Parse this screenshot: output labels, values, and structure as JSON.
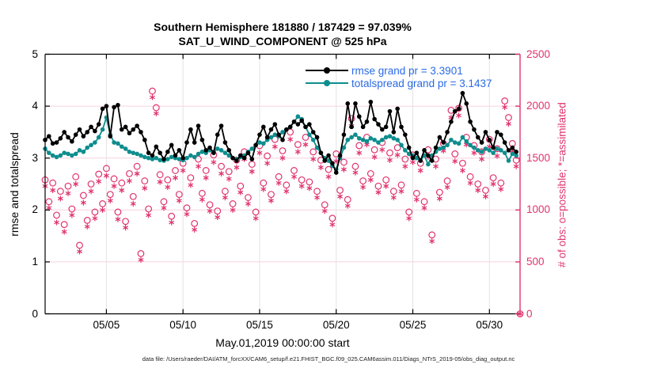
{
  "figure": {
    "title_line1": "Southern Hemisphere 181880 / 187429 = 97.039%",
    "title_line2": "SAT_U_WIND_COMPONENT @ 525 hPa",
    "xlabel": "May.01,2019 00:00:00 start",
    "ylabel_left": "rmse and totalspread",
    "ylabel_right": "# of obs: o=possible; *=assimilated",
    "footer": "data file: /Users/raeder/DAI/ATM_forcXX/CAM6_setup/f.e21.FHIST_BGC.f09_025.CAM6assim.011/Diags_NTrS_2019-05/obs_diag_output.nc"
  },
  "legend": {
    "rmse_label": "rmse grand pr = 3.3901",
    "totalspread_label": "totalspread grand pr = 3.1437"
  },
  "colors": {
    "rmse": "#000000",
    "totalspread": "#0e8d8d",
    "obs": "#e0336e",
    "legend_text": "#2a6ae6",
    "grid_h": "#f6d2e0",
    "grid_v": "#e3e3e3"
  },
  "chart_data": {
    "type": "line",
    "title": "Southern Hemisphere 181880 / 187429 = 97.039% | SAT_U_WIND_COMPONENT @ 525 hPa",
    "x_axis": {
      "label": "May.01,2019 00:00:00 start",
      "start_day": 1,
      "step_days": 0.25,
      "range_days": [
        1,
        32
      ],
      "ticks": [
        {
          "day": 5,
          "label": "05/05"
        },
        {
          "day": 10,
          "label": "05/10"
        },
        {
          "day": 15,
          "label": "05/15"
        },
        {
          "day": 20,
          "label": "05/20"
        },
        {
          "day": 25,
          "label": "05/25"
        },
        {
          "day": 30,
          "label": "05/30"
        }
      ]
    },
    "y_axis_left": {
      "label": "rmse and totalspread",
      "lim": [
        0,
        5
      ],
      "ticks": [
        0,
        1,
        2,
        3,
        4,
        5
      ]
    },
    "y_axis_right": {
      "label": "# of obs: o=possible; *=assimilated",
      "lim": [
        0,
        2500
      ],
      "ticks": [
        0,
        500,
        1000,
        1500,
        2000,
        2500
      ]
    },
    "series": [
      {
        "name": "rmse",
        "grand_pr": 3.3901,
        "axis": "left",
        "marker": "dot",
        "values": [
          3.35,
          3.42,
          3.28,
          3.3,
          3.38,
          3.5,
          3.4,
          3.32,
          3.45,
          3.55,
          3.42,
          3.5,
          3.6,
          3.52,
          3.65,
          3.95,
          4.0,
          3.42,
          3.98,
          4.02,
          3.55,
          3.6,
          3.48,
          3.55,
          3.62,
          3.5,
          3.35,
          3.1,
          3.05,
          3.22,
          3.1,
          2.98,
          3.12,
          3.25,
          3.05,
          3.15,
          3.0,
          3.3,
          3.55,
          3.3,
          3.62,
          3.35,
          3.15,
          3.2,
          3.1,
          3.45,
          3.62,
          3.3,
          3.15,
          3.0,
          2.95,
          3.05,
          3.0,
          3.1,
          2.98,
          3.25,
          3.45,
          3.6,
          3.4,
          3.55,
          3.65,
          3.45,
          3.35,
          3.55,
          3.6,
          3.7,
          3.65,
          3.72,
          3.6,
          3.65,
          3.5,
          3.4,
          3.1,
          2.95,
          3.05,
          2.9,
          2.72,
          3.05,
          3.45,
          4.05,
          3.6,
          4.05,
          3.8,
          3.6,
          3.7,
          4.08,
          3.75,
          3.65,
          3.55,
          3.6,
          3.9,
          3.5,
          3.95,
          3.6,
          3.45,
          3.2,
          3.0,
          3.1,
          2.95,
          3.15,
          3.05,
          2.95,
          3.2,
          3.4,
          3.3,
          3.5,
          3.7,
          3.9,
          3.95,
          4.25,
          4.05,
          3.7,
          3.55,
          3.4,
          3.3,
          3.5,
          3.35,
          3.2,
          3.5,
          3.45,
          3.3,
          3.15,
          3.2,
          3.12
        ]
      },
      {
        "name": "totalspread",
        "grand_pr": 3.1437,
        "axis": "left",
        "marker": "dot",
        "values": [
          3.18,
          3.1,
          3.05,
          3.02,
          3.05,
          3.1,
          3.08,
          3.05,
          3.08,
          3.15,
          3.12,
          3.2,
          3.25,
          3.3,
          3.4,
          3.55,
          3.78,
          3.45,
          3.3,
          3.28,
          3.22,
          3.18,
          3.12,
          3.1,
          3.08,
          3.05,
          3.02,
          3.0,
          2.98,
          3.0,
          2.96,
          2.95,
          2.98,
          3.02,
          3.0,
          2.98,
          2.96,
          3.0,
          3.05,
          3.02,
          3.08,
          3.12,
          3.1,
          3.15,
          3.12,
          3.18,
          3.15,
          3.1,
          3.05,
          3.0,
          2.98,
          3.02,
          3.05,
          3.12,
          3.18,
          3.25,
          3.3,
          3.28,
          3.35,
          3.4,
          3.45,
          3.42,
          3.5,
          3.55,
          3.6,
          3.7,
          3.8,
          3.75,
          3.6,
          3.45,
          3.35,
          3.2,
          3.1,
          3.0,
          2.95,
          2.85,
          2.78,
          3.0,
          3.2,
          3.35,
          3.4,
          3.45,
          3.38,
          3.35,
          3.32,
          3.38,
          3.35,
          3.3,
          3.35,
          3.4,
          3.42,
          3.38,
          3.35,
          3.25,
          3.15,
          3.08,
          3.05,
          3.0,
          2.95,
          3.05,
          2.88,
          3.05,
          3.12,
          3.18,
          3.2,
          3.25,
          3.35,
          3.3,
          3.28,
          3.4,
          3.32,
          3.25,
          3.2,
          3.15,
          3.12,
          3.18,
          3.15,
          3.1,
          3.18,
          3.15,
          3.1,
          2.95,
          3.08,
          3.05
        ]
      },
      {
        "name": "obs_possible",
        "axis": "right",
        "marker": "circle",
        "values": [
          1290,
          1080,
          1260,
          950,
          1180,
          860,
          1230,
          1010,
          1320,
          660,
          1140,
          900,
          1250,
          980,
          1345,
          1060,
          1400,
          1150,
          1300,
          980,
          1260,
          890,
          1350,
          1130,
          1420,
          580,
          1280,
          1010,
          2145,
          1985,
          1340,
          1080,
          1290,
          940,
          1380,
          1150,
          1450,
          1020,
          1310,
          870,
          1490,
          1160,
          1380,
          1050,
          1530,
          990,
          1420,
          1180,
          1370,
          1060,
          1480,
          1230,
          1560,
          1120,
          1440,
          980,
          1620,
          1260,
          1520,
          1150,
          1680,
          1320,
          1570,
          1240,
          1750,
          1380,
          1630,
          1290,
          1700,
          1270,
          1560,
          1180,
          1480,
          1050,
          1390,
          920,
          1540,
          1190,
          1460,
          1100,
          1880,
          1420,
          1620,
          1280,
          1700,
          1350,
          1580,
          1230,
          1650,
          1290,
          1550,
          1180,
          1600,
          1240,
          1490,
          980,
          1530,
          1160,
          1450,
          1080,
          1580,
          760,
          1490,
          1170,
          1640,
          1280,
          1960,
          1540,
          1980,
          1450,
          1700,
          1320,
          1620,
          1250,
          1560,
          1190,
          1680,
          1310,
          1590,
          1260,
          2050,
          1890,
          1640,
          1480,
          0
        ]
      },
      {
        "name": "obs_assimilated",
        "axis": "right",
        "marker": "asterisk",
        "values": [
          1230,
          1020,
          1190,
          880,
          1110,
          790,
          1160,
          950,
          1250,
          600,
          1070,
          840,
          1180,
          920,
          1275,
          1000,
          1330,
          1090,
          1230,
          910,
          1190,
          830,
          1280,
          1060,
          1350,
          520,
          1210,
          950,
          2085,
          1930,
          1270,
          1020,
          1220,
          880,
          1310,
          1090,
          1380,
          960,
          1240,
          810,
          1420,
          1100,
          1310,
          990,
          1460,
          930,
          1350,
          1120,
          1300,
          1000,
          1410,
          1170,
          1490,
          1060,
          1370,
          920,
          1550,
          1200,
          1450,
          1090,
          1610,
          1260,
          1500,
          1180,
          1680,
          1320,
          1560,
          1230,
          1630,
          1210,
          1490,
          1120,
          1410,
          990,
          1320,
          860,
          1470,
          1130,
          1390,
          1040,
          1810,
          1360,
          1550,
          1220,
          1630,
          1290,
          1510,
          1170,
          1580,
          1230,
          1480,
          1120,
          1530,
          1180,
          1420,
          920,
          1460,
          1100,
          1380,
          1020,
          1510,
          700,
          1420,
          1110,
          1570,
          1220,
          1890,
          1470,
          1910,
          1380,
          1630,
          1260,
          1550,
          1190,
          1490,
          1130,
          1610,
          1250,
          1520,
          1200,
          1990,
          1830,
          1570,
          1420,
          0
        ]
      }
    ]
  }
}
